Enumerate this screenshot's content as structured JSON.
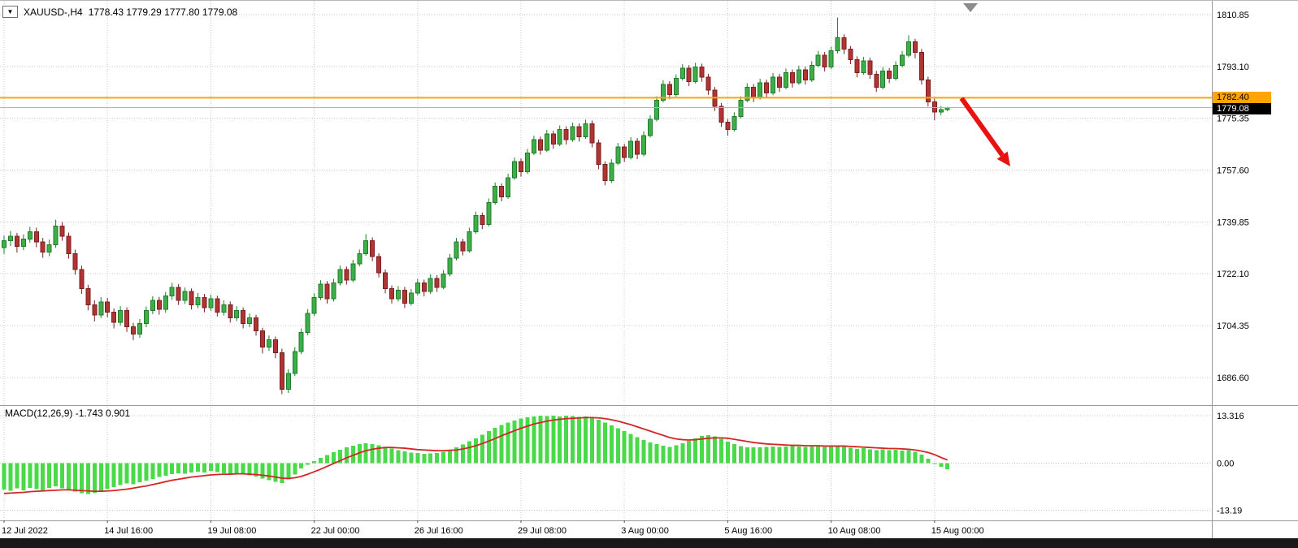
{
  "legend": {
    "symbol_timeframe": "XAUUSD-,H4",
    "ohlc": "1778.43 1779.29 1777.80 1779.08"
  },
  "chart_data": [
    {
      "type": "candlestick",
      "symbol": "XAUUSD-",
      "timeframe": "H4",
      "current_bar": {
        "open": 1778.43,
        "high": 1779.29,
        "low": 1777.8,
        "close": 1779.08
      },
      "y_axis": {
        "max": 1815.6,
        "min": 1677.4
      },
      "y_ticks": [
        1810.85,
        1793.1,
        1775.35,
        1757.6,
        1739.85,
        1722.1,
        1704.35,
        1686.6
      ],
      "y_tick_labels": [
        "1810.85",
        "1793.10",
        "1775.35",
        "1757.60",
        "1739.85",
        "1722.10",
        "1704.35",
        "1686.60"
      ],
      "x_tick_labels": [
        "12 Jul 2022",
        "14 Jul 16:00",
        "19 Jul 08:00",
        "22 Jul 00:00",
        "26 Jul 16:00",
        "29 Jul 08:00",
        "3 Aug 00:00",
        "5 Aug 16:00",
        "10 Aug 08:00",
        "15 Aug 00:00"
      ],
      "x_tick_indices": [
        0,
        16,
        32,
        48,
        64,
        80,
        96,
        112,
        128,
        144
      ],
      "horizontal_line": {
        "price": 1782.4,
        "label": "1782.40",
        "color": "#FFA500"
      },
      "bid_line": {
        "price": 1779.08,
        "label": "1779.08"
      },
      "colors": {
        "up_fill": "#3fae49",
        "up_stroke": "#1e7d27",
        "down_fill": "#b13434",
        "down_stroke": "#7c1f1f",
        "grid": "#c9c9c9",
        "background": "#ffffff"
      },
      "candles": [
        [
          1731.0,
          1735.2,
          1728.9,
          1733.5
        ],
        [
          1733.5,
          1736.8,
          1731.6,
          1735.0
        ],
        [
          1735.0,
          1736.1,
          1729.4,
          1731.5
        ],
        [
          1731.5,
          1735.6,
          1730.2,
          1734.0
        ],
        [
          1734.0,
          1738.2,
          1732.8,
          1736.5
        ],
        [
          1736.5,
          1737.9,
          1731.2,
          1733.0
        ],
        [
          1733.0,
          1734.4,
          1727.6,
          1729.5
        ],
        [
          1729.5,
          1733.8,
          1728.1,
          1732.0
        ],
        [
          1732.0,
          1740.6,
          1731.0,
          1738.5
        ],
        [
          1738.5,
          1739.8,
          1733.4,
          1735.0
        ],
        [
          1735.0,
          1736.2,
          1727.3,
          1729.0
        ],
        [
          1729.0,
          1730.4,
          1721.8,
          1723.5
        ],
        [
          1723.5,
          1724.9,
          1715.2,
          1717.0
        ],
        [
          1717.0,
          1718.3,
          1709.6,
          1711.5
        ],
        [
          1711.5,
          1713.0,
          1705.8,
          1708.0
        ],
        [
          1708.0,
          1714.1,
          1706.9,
          1712.5
        ],
        [
          1712.5,
          1713.8,
          1707.2,
          1709.0
        ],
        [
          1709.0,
          1710.2,
          1703.4,
          1705.5
        ],
        [
          1705.5,
          1711.0,
          1704.3,
          1709.5
        ],
        [
          1709.5,
          1710.6,
          1702.2,
          1704.0
        ],
        [
          1704.0,
          1705.3,
          1699.4,
          1701.5
        ],
        [
          1701.5,
          1706.6,
          1700.2,
          1705.0
        ],
        [
          1705.0,
          1710.9,
          1703.8,
          1709.5
        ],
        [
          1709.5,
          1714.4,
          1708.3,
          1713.0
        ],
        [
          1713.0,
          1714.2,
          1708.1,
          1710.0
        ],
        [
          1710.0,
          1715.9,
          1708.8,
          1714.5
        ],
        [
          1714.5,
          1719.0,
          1713.2,
          1717.5
        ],
        [
          1717.5,
          1718.6,
          1711.4,
          1713.0
        ],
        [
          1713.0,
          1717.4,
          1711.8,
          1716.0
        ],
        [
          1716.0,
          1717.1,
          1709.9,
          1711.5
        ],
        [
          1711.5,
          1715.5,
          1710.3,
          1714.0
        ],
        [
          1714.0,
          1715.2,
          1708.9,
          1710.5
        ],
        [
          1710.5,
          1714.9,
          1709.4,
          1713.5
        ],
        [
          1713.5,
          1714.6,
          1707.5,
          1709.0
        ],
        [
          1709.0,
          1713.0,
          1707.8,
          1711.5
        ],
        [
          1711.5,
          1712.6,
          1705.4,
          1707.0
        ],
        [
          1707.0,
          1711.0,
          1705.9,
          1709.5
        ],
        [
          1709.5,
          1710.6,
          1703.4,
          1705.0
        ],
        [
          1705.0,
          1708.5,
          1703.8,
          1707.0
        ],
        [
          1707.0,
          1708.1,
          1700.9,
          1702.5
        ],
        [
          1702.5,
          1703.6,
          1694.8,
          1697.0
        ],
        [
          1697.0,
          1701.0,
          1695.7,
          1699.5
        ],
        [
          1699.5,
          1700.6,
          1693.2,
          1695.0
        ],
        [
          1695.0,
          1696.5,
          1680.9,
          1682.5
        ],
        [
          1682.5,
          1689.4,
          1681.3,
          1688.0
        ],
        [
          1688.0,
          1697.0,
          1687.1,
          1695.5
        ],
        [
          1695.5,
          1703.4,
          1694.6,
          1702.0
        ],
        [
          1702.0,
          1710.0,
          1701.1,
          1708.5
        ],
        [
          1708.5,
          1715.4,
          1707.6,
          1714.0
        ],
        [
          1714.0,
          1719.9,
          1713.1,
          1718.5
        ],
        [
          1718.5,
          1719.6,
          1711.9,
          1713.5
        ],
        [
          1713.5,
          1720.4,
          1712.6,
          1719.0
        ],
        [
          1719.0,
          1724.9,
          1718.1,
          1723.5
        ],
        [
          1723.5,
          1724.6,
          1718.4,
          1720.0
        ],
        [
          1720.0,
          1726.9,
          1719.2,
          1725.5
        ],
        [
          1725.5,
          1730.4,
          1724.6,
          1729.0
        ],
        [
          1729.0,
          1735.7,
          1728.3,
          1733.5
        ],
        [
          1733.5,
          1734.6,
          1726.4,
          1728.0
        ],
        [
          1728.0,
          1729.1,
          1720.9,
          1722.5
        ],
        [
          1722.5,
          1723.6,
          1715.4,
          1717.0
        ],
        [
          1717.0,
          1718.1,
          1711.9,
          1713.5
        ],
        [
          1713.5,
          1717.9,
          1712.6,
          1716.5
        ],
        [
          1716.5,
          1717.6,
          1710.4,
          1712.0
        ],
        [
          1712.0,
          1716.9,
          1711.2,
          1715.5
        ],
        [
          1715.5,
          1720.4,
          1714.7,
          1719.0
        ],
        [
          1719.0,
          1720.1,
          1714.4,
          1716.0
        ],
        [
          1716.0,
          1721.9,
          1715.2,
          1720.5
        ],
        [
          1720.5,
          1721.6,
          1715.9,
          1717.5
        ],
        [
          1717.5,
          1723.4,
          1716.8,
          1722.0
        ],
        [
          1722.0,
          1728.9,
          1721.2,
          1727.5
        ],
        [
          1727.5,
          1734.4,
          1726.7,
          1733.0
        ],
        [
          1733.0,
          1734.1,
          1728.4,
          1730.0
        ],
        [
          1730.0,
          1737.9,
          1729.3,
          1736.5
        ],
        [
          1736.5,
          1743.4,
          1735.8,
          1742.0
        ],
        [
          1742.0,
          1743.1,
          1737.4,
          1739.0
        ],
        [
          1739.0,
          1747.9,
          1738.3,
          1746.5
        ],
        [
          1746.5,
          1753.4,
          1745.8,
          1752.0
        ],
        [
          1752.0,
          1753.1,
          1746.9,
          1748.5
        ],
        [
          1748.5,
          1756.4,
          1747.8,
          1755.0
        ],
        [
          1755.0,
          1761.9,
          1754.3,
          1760.5
        ],
        [
          1760.5,
          1761.6,
          1755.4,
          1757.0
        ],
        [
          1757.0,
          1764.9,
          1756.3,
          1763.5
        ],
        [
          1763.5,
          1769.4,
          1762.8,
          1768.0
        ],
        [
          1768.0,
          1769.1,
          1762.9,
          1764.5
        ],
        [
          1764.5,
          1771.4,
          1763.8,
          1770.0
        ],
        [
          1770.0,
          1771.1,
          1764.9,
          1766.5
        ],
        [
          1766.5,
          1772.9,
          1765.8,
          1771.5
        ],
        [
          1771.5,
          1772.6,
          1766.4,
          1768.0
        ],
        [
          1768.0,
          1773.9,
          1767.3,
          1772.5
        ],
        [
          1772.5,
          1773.6,
          1767.4,
          1769.0
        ],
        [
          1769.0,
          1774.9,
          1768.3,
          1773.5
        ],
        [
          1773.5,
          1774.6,
          1765.4,
          1767.0
        ],
        [
          1767.0,
          1768.1,
          1757.9,
          1759.5
        ],
        [
          1759.5,
          1760.6,
          1752.4,
          1754.0
        ],
        [
          1754.0,
          1761.4,
          1753.2,
          1760.0
        ],
        [
          1760.0,
          1766.9,
          1759.3,
          1765.5
        ],
        [
          1765.5,
          1766.6,
          1760.4,
          1762.0
        ],
        [
          1762.0,
          1768.9,
          1761.3,
          1767.5
        ],
        [
          1767.5,
          1768.6,
          1761.4,
          1763.0
        ],
        [
          1763.0,
          1770.9,
          1762.3,
          1769.5
        ],
        [
          1769.5,
          1776.4,
          1768.8,
          1775.0
        ],
        [
          1775.0,
          1782.9,
          1774.3,
          1781.5
        ],
        [
          1781.5,
          1788.4,
          1780.8,
          1787.0
        ],
        [
          1787.0,
          1788.1,
          1781.9,
          1783.5
        ],
        [
          1783.5,
          1790.4,
          1782.8,
          1789.0
        ],
        [
          1789.0,
          1793.9,
          1788.3,
          1792.5
        ],
        [
          1792.5,
          1793.6,
          1786.4,
          1788.0
        ],
        [
          1788.0,
          1794.4,
          1787.3,
          1793.0
        ],
        [
          1793.0,
          1794.1,
          1787.9,
          1789.5
        ],
        [
          1789.5,
          1790.6,
          1783.4,
          1785.0
        ],
        [
          1785.0,
          1786.1,
          1777.9,
          1779.5
        ],
        [
          1779.5,
          1780.6,
          1772.4,
          1774.0
        ],
        [
          1774.0,
          1775.1,
          1769.4,
          1771.5
        ],
        [
          1771.5,
          1777.4,
          1770.8,
          1776.0
        ],
        [
          1776.0,
          1782.9,
          1775.3,
          1781.5
        ],
        [
          1781.5,
          1787.4,
          1780.8,
          1786.0
        ],
        [
          1786.0,
          1787.1,
          1780.9,
          1782.5
        ],
        [
          1782.5,
          1788.9,
          1781.8,
          1787.5
        ],
        [
          1787.5,
          1788.6,
          1782.4,
          1784.0
        ],
        [
          1784.0,
          1790.9,
          1783.3,
          1789.5
        ],
        [
          1789.5,
          1790.6,
          1784.4,
          1786.0
        ],
        [
          1786.0,
          1792.4,
          1785.3,
          1791.0
        ],
        [
          1791.0,
          1792.1,
          1785.9,
          1787.5
        ],
        [
          1787.5,
          1793.4,
          1786.8,
          1792.0
        ],
        [
          1792.0,
          1793.1,
          1786.9,
          1788.5
        ],
        [
          1788.5,
          1794.9,
          1787.8,
          1793.5
        ],
        [
          1793.5,
          1798.4,
          1792.8,
          1797.0
        ],
        [
          1797.0,
          1798.1,
          1791.4,
          1793.0
        ],
        [
          1793.0,
          1799.9,
          1792.3,
          1798.5
        ],
        [
          1798.5,
          1809.9,
          1797.6,
          1803.0
        ],
        [
          1803.0,
          1804.1,
          1797.4,
          1799.0
        ],
        [
          1799.0,
          1800.1,
          1793.9,
          1795.5
        ],
        [
          1795.5,
          1796.6,
          1789.4,
          1791.0
        ],
        [
          1791.0,
          1796.4,
          1790.3,
          1795.0
        ],
        [
          1795.0,
          1796.1,
          1788.9,
          1790.5
        ],
        [
          1790.5,
          1791.6,
          1784.4,
          1786.0
        ],
        [
          1786.0,
          1792.9,
          1785.3,
          1791.5
        ],
        [
          1791.5,
          1792.6,
          1787.4,
          1789.0
        ],
        [
          1789.0,
          1794.9,
          1788.3,
          1793.5
        ],
        [
          1793.5,
          1798.4,
          1792.8,
          1797.0
        ],
        [
          1797.0,
          1803.8,
          1796.3,
          1801.5
        ],
        [
          1801.5,
          1802.6,
          1795.9,
          1798.0
        ],
        [
          1798.0,
          1799.1,
          1786.9,
          1788.5
        ],
        [
          1788.5,
          1789.6,
          1779.4,
          1781.0
        ],
        [
          1781.0,
          1782.1,
          1774.7,
          1777.5
        ],
        [
          1777.5,
          1779.6,
          1776.4,
          1778.4
        ],
        [
          1778.4,
          1779.3,
          1777.8,
          1779.1
        ]
      ]
    },
    {
      "type": "macd",
      "label": "MACD(12,26,9) -1.743 0.901",
      "name": "MACD(12,26,9)",
      "params": [
        12,
        26,
        9
      ],
      "macd_value": -1.743,
      "signal_value": 0.901,
      "y_axis": {
        "max": 16.07,
        "min": -16.07
      },
      "y_ticks": [
        13.316,
        0,
        -13.19
      ],
      "y_tick_labels": [
        "13.316",
        "0.00",
        "-13.19"
      ],
      "colors": {
        "histogram": "#49d949",
        "signal": "#d42626"
      },
      "histogram": [
        -7.4,
        -7.8,
        -7.1,
        -7.6,
        -6.9,
        -7.3,
        -7.7,
        -7.0,
        -6.5,
        -7.1,
        -7.6,
        -8.0,
        -8.4,
        -8.7,
        -8.3,
        -7.8,
        -7.3,
        -6.7,
        -6.2,
        -5.7,
        -5.9,
        -5.4,
        -4.9,
        -4.4,
        -3.9,
        -3.5,
        -3.1,
        -2.8,
        -3.0,
        -2.6,
        -2.4,
        -2.6,
        -2.2,
        -2.5,
        -2.8,
        -3.1,
        -2.9,
        -3.2,
        -3.4,
        -3.8,
        -4.3,
        -4.8,
        -5.2,
        -5.6,
        -4.6,
        -3.2,
        -1.5,
        -0.4,
        0.6,
        1.5,
        2.3,
        3.1,
        3.8,
        4.4,
        4.9,
        5.3,
        5.6,
        5.4,
        5.0,
        4.6,
        4.1,
        3.7,
        3.3,
        3.0,
        2.8,
        2.6,
        2.7,
        2.9,
        3.2,
        3.7,
        4.4,
        5.2,
        6.1,
        7.0,
        8.0,
        9.0,
        9.9,
        10.7,
        11.4,
        12.0,
        12.5,
        12.9,
        13.1,
        13.3,
        13.2,
        13.3,
        13.1,
        13.3,
        13.2,
        13.0,
        13.1,
        12.8,
        12.2,
        11.4,
        10.6,
        9.8,
        9.0,
        8.2,
        7.3,
        6.5,
        5.8,
        5.3,
        4.9,
        4.6,
        5.0,
        5.6,
        6.3,
        7.0,
        7.6,
        7.9,
        7.5,
        6.8,
        6.0,
        5.3,
        4.8,
        4.5,
        4.4,
        4.5,
        4.6,
        4.7,
        4.6,
        4.7,
        4.8,
        4.7,
        4.6,
        4.7,
        4.8,
        4.6,
        4.7,
        4.9,
        4.6,
        4.3,
        4.0,
        4.2,
        3.9,
        3.7,
        3.9,
        3.6,
        3.8,
        3.5,
        3.7,
        3.2,
        2.4,
        1.2,
        -0.1,
        -1.0,
        -1.743
      ],
      "signal": [
        -8.5,
        -8.4,
        -8.3,
        -8.2,
        -8.0,
        -7.9,
        -7.8,
        -7.7,
        -7.6,
        -7.5,
        -7.5,
        -7.6,
        -7.7,
        -7.8,
        -7.9,
        -7.9,
        -7.8,
        -7.7,
        -7.5,
        -7.3,
        -7.0,
        -6.7,
        -6.4,
        -6.0,
        -5.6,
        -5.2,
        -4.8,
        -4.5,
        -4.2,
        -3.9,
        -3.7,
        -3.5,
        -3.3,
        -3.2,
        -3.1,
        -3.1,
        -3.0,
        -3.0,
        -3.1,
        -3.2,
        -3.4,
        -3.6,
        -3.9,
        -4.2,
        -4.3,
        -4.1,
        -3.7,
        -3.1,
        -2.4,
        -1.7,
        -0.9,
        -0.1,
        0.7,
        1.5,
        2.2,
        2.9,
        3.5,
        3.9,
        4.2,
        4.4,
        4.4,
        4.3,
        4.2,
        4.0,
        3.8,
        3.7,
        3.6,
        3.5,
        3.5,
        3.6,
        3.7,
        4.0,
        4.4,
        4.9,
        5.5,
        6.2,
        6.9,
        7.7,
        8.4,
        9.1,
        9.8,
        10.4,
        11.0,
        11.4,
        11.8,
        12.1,
        12.3,
        12.5,
        12.6,
        12.7,
        12.8,
        12.8,
        12.7,
        12.5,
        12.2,
        11.8,
        11.3,
        10.8,
        10.2,
        9.6,
        9.0,
        8.4,
        7.8,
        7.2,
        6.8,
        6.6,
        6.5,
        6.6,
        6.8,
        7.0,
        7.1,
        7.1,
        7.0,
        6.7,
        6.4,
        6.1,
        5.8,
        5.6,
        5.4,
        5.3,
        5.2,
        5.1,
        5.0,
        5.0,
        4.9,
        4.9,
        4.9,
        4.8,
        4.8,
        4.8,
        4.8,
        4.7,
        4.6,
        4.5,
        4.4,
        4.3,
        4.2,
        4.1,
        4.1,
        4.0,
        3.9,
        3.7,
        3.4,
        3.0,
        2.4,
        1.6,
        0.901
      ]
    }
  ],
  "annotations": {
    "arrow": {
      "from": [
        1183,
        120
      ],
      "to": [
        1243,
        204
      ],
      "color": "#e81212",
      "width": 6
    },
    "shift_marker_color": "#8c8c8c"
  }
}
